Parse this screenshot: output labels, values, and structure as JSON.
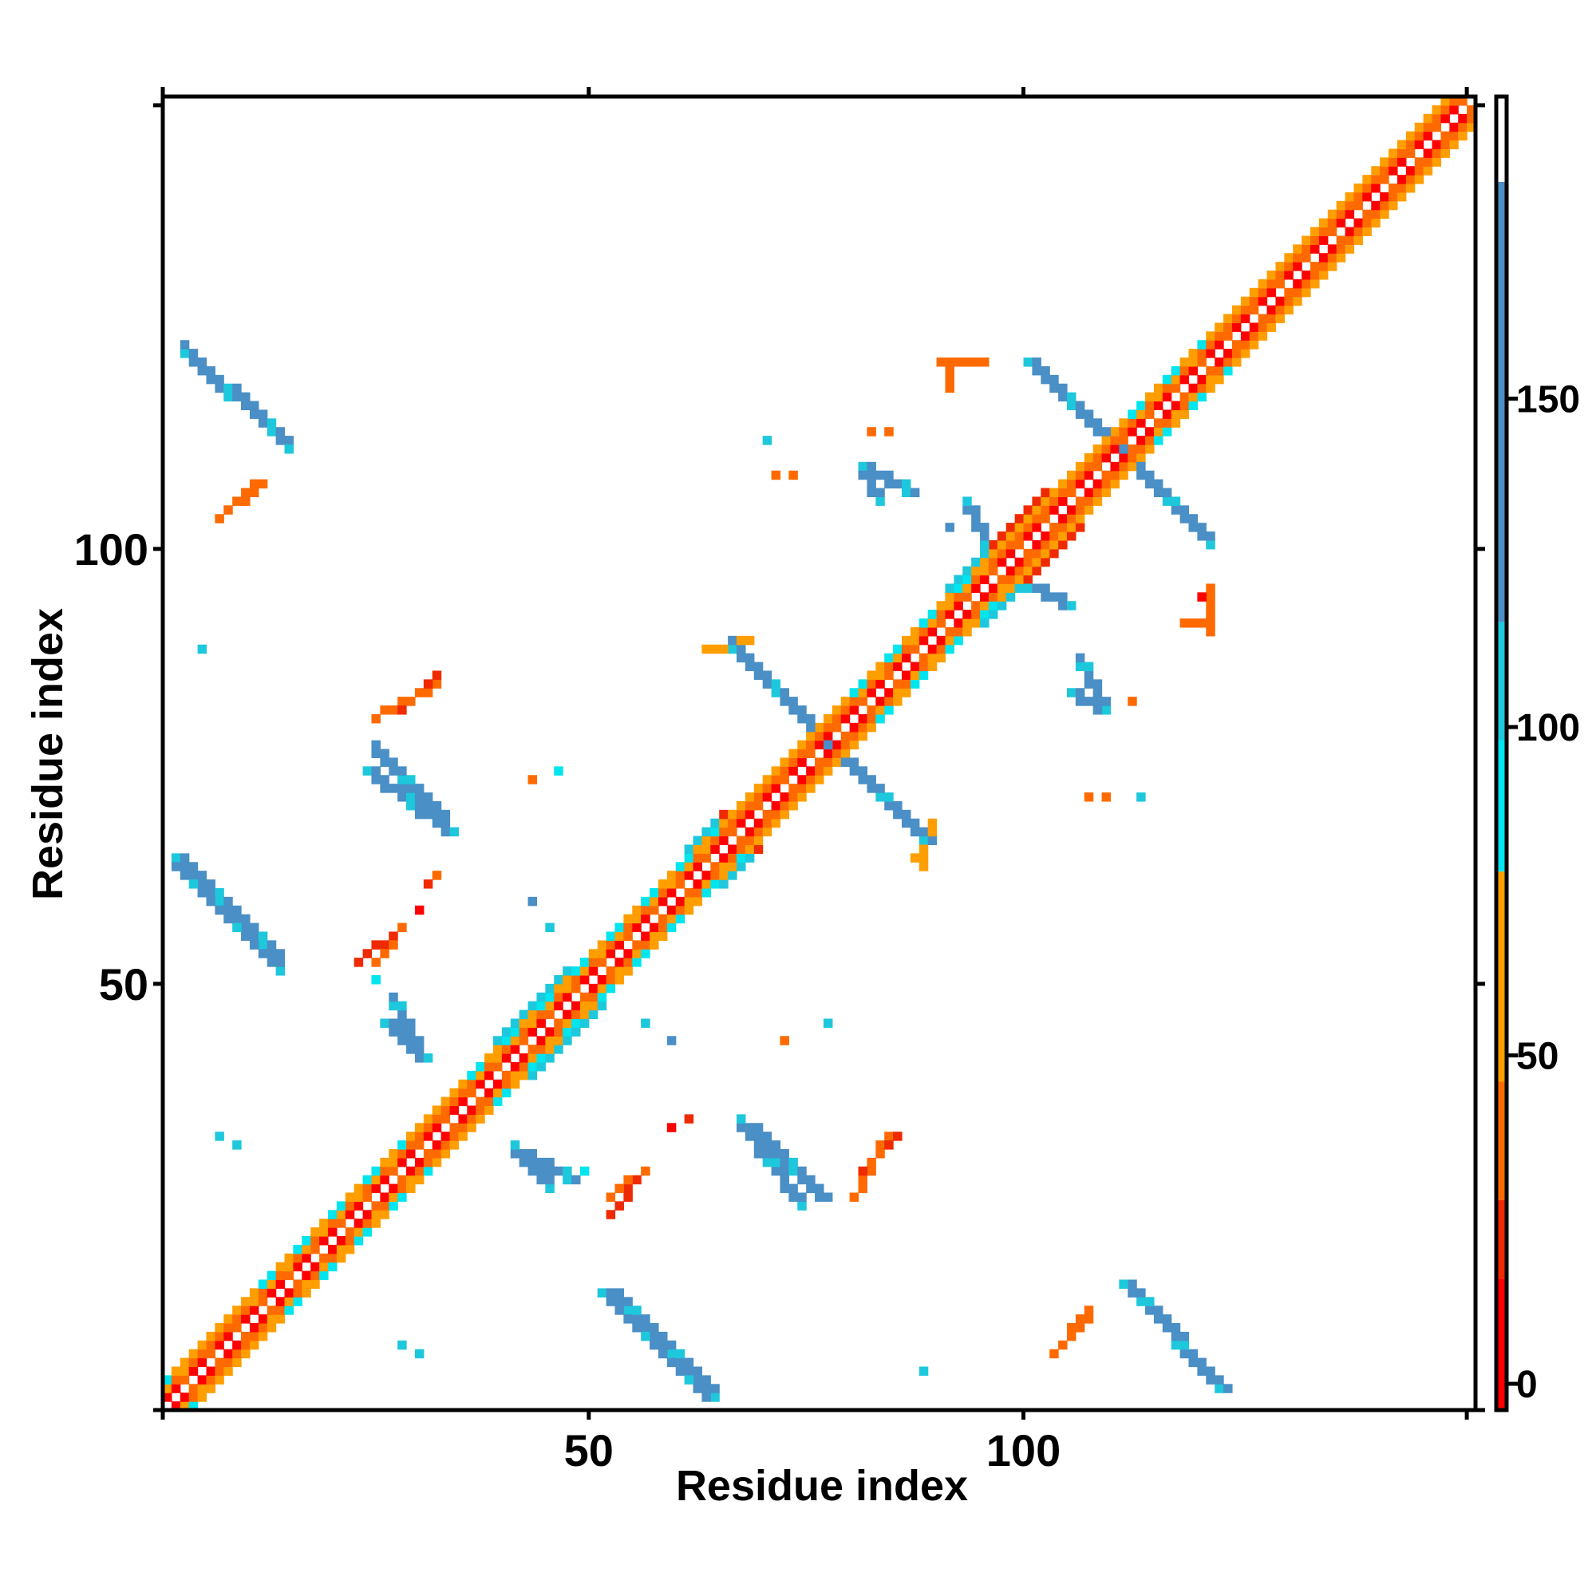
{
  "chart_data": {
    "type": "heatmap",
    "title": "",
    "xlabel": "Residue index",
    "ylabel": "Residue index",
    "xlim": [
      1,
      151
    ],
    "ylim": [
      1,
      151
    ],
    "x_ticks": [
      50,
      100
    ],
    "y_ticks": [
      50,
      100
    ],
    "colorbar": {
      "ticks": [
        0,
        50,
        100,
        150
      ],
      "range": [
        -4,
        196
      ],
      "bands": [
        {
          "from": -4,
          "to": 16,
          "color": "#FF0000"
        },
        {
          "from": 16,
          "to": 28,
          "color": "#F02A00"
        },
        {
          "from": 28,
          "to": 46,
          "color": "#FF6A00"
        },
        {
          "from": 46,
          "to": 78,
          "color": "#FF9E00"
        },
        {
          "from": 78,
          "to": 98,
          "color": "#00E5EE"
        },
        {
          "from": 98,
          "to": 116,
          "color": "#1EC8DC"
        },
        {
          "from": 116,
          "to": 183,
          "color": "#4A8FC6"
        },
        {
          "from": 183,
          "to": 196,
          "color": "#FFFFFF"
        }
      ]
    },
    "legend": "right colorbar",
    "grid": false,
    "note_diagonal": "symmetric contact band along diagonal from residue 1 to 151",
    "segments": [
      {
        "x0": 3,
        "y0": 122,
        "x1": 14,
        "y1": 112,
        "value": 150
      },
      {
        "x0": 2,
        "y0": 64,
        "x1": 13,
        "y1": 53,
        "value": 150
      },
      {
        "x0": 24,
        "y0": 74,
        "x1": 33,
        "y1": 67,
        "value": 140
      },
      {
        "x0": 26,
        "y0": 45,
        "x1": 30,
        "y1": 41,
        "value": 150
      },
      {
        "x0": 42,
        "y0": 30,
        "x1": 47,
        "y1": 27,
        "value": 150
      },
      {
        "x0": 51,
        "y0": 14,
        "x1": 63,
        "y1": 2,
        "value": 150
      },
      {
        "x0": 68,
        "y0": 33,
        "x1": 76,
        "y1": 25,
        "value": 140
      },
      {
        "x0": 66,
        "y0": 88,
        "x1": 88,
        "y1": 66,
        "value": 150
      },
      {
        "x0": 100,
        "y0": 121,
        "x1": 120,
        "y1": 101,
        "value": 150
      },
      {
        "x0": 111,
        "y0": 15,
        "x1": 122,
        "y1": 3,
        "value": 150
      },
      {
        "x0": 81,
        "y0": 109,
        "x1": 86,
        "y1": 106,
        "value": 120
      },
      {
        "x0": 105,
        "y0": 83,
        "x1": 108,
        "y1": 81,
        "value": 130
      },
      {
        "x0": 100,
        "y0": 95,
        "x1": 104,
        "y1": 93,
        "value": 150
      },
      {
        "x0": 7,
        "y0": 103,
        "x1": 12,
        "y1": 107,
        "value": 40
      },
      {
        "x0": 25,
        "y0": 80,
        "x1": 32,
        "y1": 84,
        "value": 30
      },
      {
        "x0": 23,
        "y0": 52,
        "x1": 27,
        "y1": 55,
        "value": 25
      },
      {
        "x0": 52,
        "y0": 25,
        "x1": 56,
        "y1": 28,
        "value": 30
      },
      {
        "x0": 81,
        "y0": 28,
        "x1": 85,
        "y1": 32,
        "value": 25
      },
      {
        "x0": 103,
        "y0": 7,
        "x1": 107,
        "y1": 11,
        "value": 45
      },
      {
        "x0": 63,
        "y0": 88,
        "x1": 68,
        "y1": 89,
        "value": 50
      },
      {
        "x0": 90,
        "y0": 121,
        "x1": 95,
        "y1": 121,
        "value": 35
      },
      {
        "x0": 118,
        "y0": 91,
        "x1": 120,
        "y1": 91,
        "value": 40
      }
    ],
    "points": [
      {
        "x": 5,
        "y": 88,
        "value": 110
      },
      {
        "x": 7,
        "y": 32,
        "value": 110
      },
      {
        "x": 9,
        "y": 31,
        "value": 110
      },
      {
        "x": 28,
        "y": 8,
        "value": 110
      },
      {
        "x": 30,
        "y": 7,
        "value": 110
      },
      {
        "x": 46,
        "y": 74,
        "value": 95
      },
      {
        "x": 43,
        "y": 59,
        "value": 130
      },
      {
        "x": 45,
        "y": 56,
        "value": 110
      },
      {
        "x": 43,
        "y": 73,
        "value": 30
      },
      {
        "x": 31,
        "y": 61,
        "value": 20
      },
      {
        "x": 32,
        "y": 62,
        "value": 30
      },
      {
        "x": 30,
        "y": 58,
        "value": 10
      },
      {
        "x": 25,
        "y": 50,
        "value": 90
      },
      {
        "x": 56,
        "y": 45,
        "value": 110
      },
      {
        "x": 59,
        "y": 43,
        "value": 120
      },
      {
        "x": 72,
        "y": 43,
        "value": 30
      },
      {
        "x": 77,
        "y": 45,
        "value": 110
      },
      {
        "x": 59,
        "y": 33,
        "value": 10
      },
      {
        "x": 61,
        "y": 34,
        "value": 20
      },
      {
        "x": 49,
        "y": 28,
        "value": 90
      },
      {
        "x": 88,
        "y": 5,
        "value": 110
      },
      {
        "x": 70,
        "y": 112,
        "value": 110
      },
      {
        "x": 71,
        "y": 108,
        "value": 40
      },
      {
        "x": 73,
        "y": 108,
        "value": 30
      },
      {
        "x": 91,
        "y": 102,
        "value": 130
      },
      {
        "x": 112,
        "y": 82,
        "value": 40
      },
      {
        "x": 107,
        "y": 71,
        "value": 40
      },
      {
        "x": 109,
        "y": 71,
        "value": 30
      },
      {
        "x": 113,
        "y": 71,
        "value": 110
      },
      {
        "x": 89,
        "y": 66,
        "value": 20
      },
      {
        "x": 87,
        "y": 64,
        "value": 50
      },
      {
        "x": 120,
        "y": 94,
        "value": 15
      },
      {
        "x": 82,
        "y": 113,
        "value": 30
      },
      {
        "x": 84,
        "y": 113,
        "value": 40
      }
    ]
  }
}
